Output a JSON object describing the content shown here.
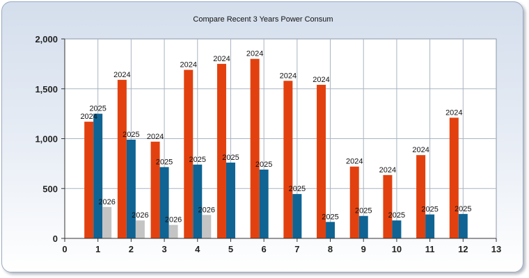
{
  "chart_data": {
    "type": "bar",
    "title": "Compare Recent 3 Years Power Consum",
    "xlim": [
      0,
      13
    ],
    "ylim": [
      0,
      2000
    ],
    "x_ticks": [
      0,
      1,
      2,
      3,
      4,
      5,
      6,
      7,
      8,
      9,
      10,
      11,
      12,
      13
    ],
    "y_ticks": [
      0,
      500,
      1000,
      1500,
      2000
    ],
    "y_tick_labels": [
      "0",
      "500",
      "1,000",
      "1,500",
      "2,000"
    ],
    "grid": true,
    "legend": "none",
    "series": [
      {
        "name": "2024",
        "color": "#e2410f",
        "x": [
          1,
          2,
          3,
          4,
          5,
          6,
          7,
          8,
          9,
          10,
          11,
          12
        ],
        "values": [
          1170,
          1590,
          970,
          1690,
          1750,
          1800,
          1580,
          1540,
          720,
          635,
          835,
          1210
        ]
      },
      {
        "name": "2025",
        "color": "#0f6493",
        "x": [
          1,
          2,
          3,
          4,
          5,
          6,
          7,
          8,
          9,
          10,
          11,
          12
        ],
        "values": [
          1250,
          990,
          715,
          740,
          760,
          690,
          445,
          165,
          225,
          180,
          240,
          245
        ]
      },
      {
        "name": "2026",
        "color": "#c4c4c4",
        "x": [
          1,
          2,
          3,
          4
        ],
        "values": [
          315,
          180,
          135,
          235
        ]
      }
    ]
  }
}
